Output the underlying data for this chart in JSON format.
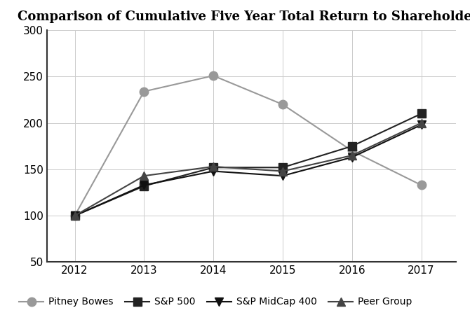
{
  "title": "Comparison of Cumulative Five Year Total Return to Shareholders",
  "years": [
    2012,
    2013,
    2014,
    2015,
    2016,
    2017
  ],
  "series": {
    "Pitney Bowes": [
      100,
      234,
      251,
      220,
      170,
      133
    ],
    "S&P 500": [
      100,
      132,
      152,
      152,
      175,
      210
    ],
    "S&P MidCap 400": [
      100,
      133,
      148,
      143,
      163,
      198
    ],
    "Peer Group": [
      100,
      143,
      153,
      148,
      165,
      200
    ]
  },
  "colors": {
    "Pitney Bowes": "#999999",
    "S&P 500": "#222222",
    "S&P MidCap 400": "#111111",
    "Peer Group": "#444444"
  },
  "markers": {
    "Pitney Bowes": "o",
    "S&P 500": "s",
    "S&P MidCap 400": "v",
    "Peer Group": "^"
  },
  "marker_sizes": {
    "Pitney Bowes": 9,
    "S&P 500": 8,
    "S&P MidCap 400": 9,
    "Peer Group": 9
  },
  "ylim": [
    50,
    300
  ],
  "yticks": [
    50,
    100,
    150,
    200,
    250,
    300
  ],
  "background_color": "#ffffff",
  "grid_color": "#cccccc",
  "title_fontsize": 13,
  "legend_fontsize": 10,
  "tick_fontsize": 11,
  "spine_color": "#333333",
  "line_width": 1.5
}
